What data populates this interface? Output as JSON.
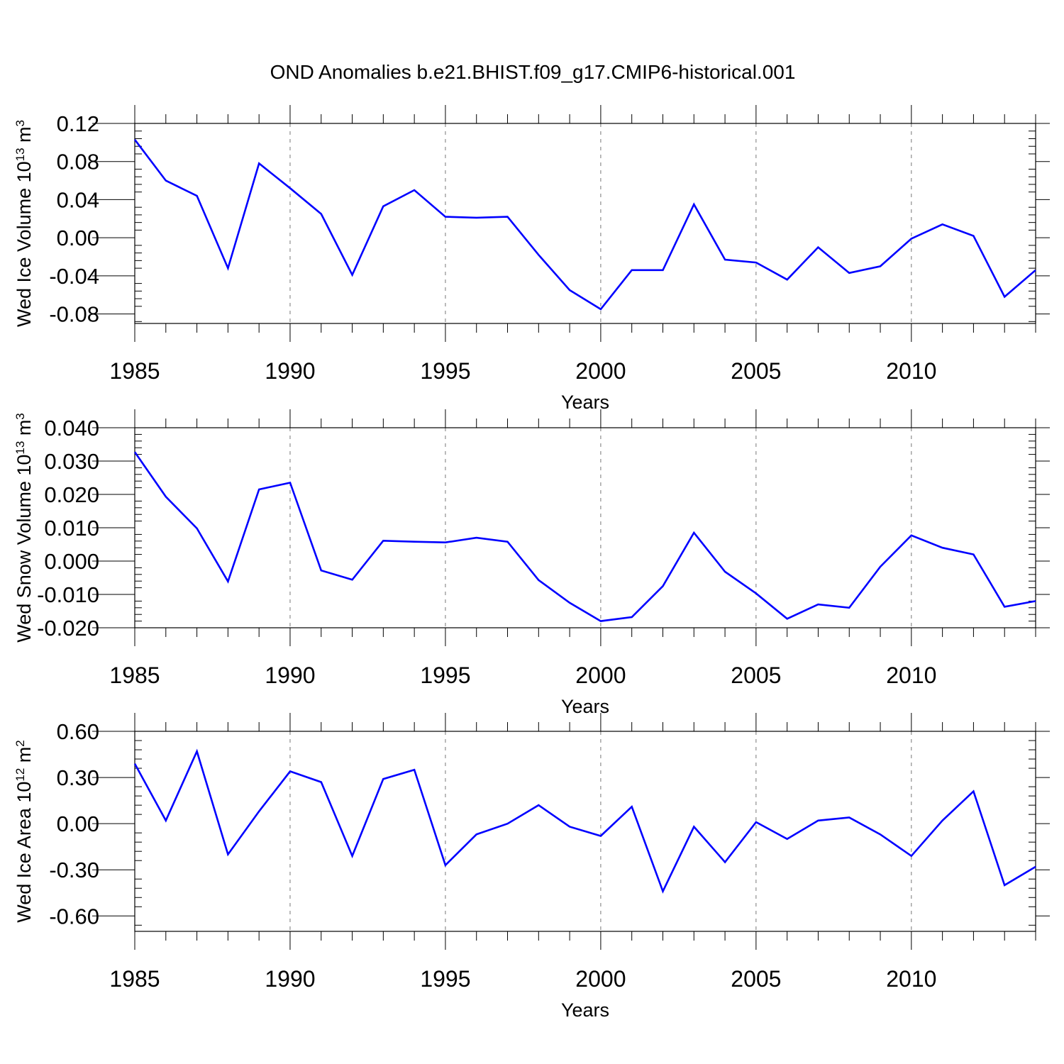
{
  "title": "OND Anomalies b.e21.BHIST.f09_g17.CMIP6-historical.001",
  "colors": {
    "series": "#0000ff",
    "axis": "#000000",
    "grid": "#777777"
  },
  "chart_data": [
    {
      "type": "line",
      "xlabel": "Years",
      "ylabel": {
        "text": "Wed Ice Volume 10",
        "exponent": "13",
        "unit": " m",
        "unit_exponent": "3"
      },
      "xlim": [
        1985,
        2014
      ],
      "ylim": [
        -0.09,
        0.12
      ],
      "yticks": [
        -0.08,
        -0.04,
        0.0,
        0.04,
        0.08,
        0.12
      ],
      "ytick_labels": [
        "-0.08",
        "-0.04",
        "0.00",
        "0.04",
        "0.08",
        "0.12"
      ],
      "xticks": [
        1985,
        1990,
        1995,
        2000,
        2005,
        2010
      ],
      "xtick_labels": [
        "1985",
        "1990",
        "1995",
        "2000",
        "2005",
        "2010"
      ],
      "grid": "vertical dashed at major x ticks",
      "x": [
        1985,
        1986,
        1987,
        1988,
        1989,
        1990,
        1991,
        1992,
        1993,
        1994,
        1995,
        1996,
        1997,
        1998,
        1999,
        2000,
        2001,
        2002,
        2003,
        2004,
        2005,
        2006,
        2007,
        2008,
        2009,
        2010,
        2011,
        2012,
        2013,
        2014
      ],
      "values": [
        0.103,
        0.06,
        0.044,
        -0.032,
        0.078,
        0.052,
        0.025,
        -0.039,
        0.033,
        0.05,
        0.022,
        0.021,
        0.022,
        -0.018,
        -0.055,
        -0.075,
        -0.034,
        -0.034,
        0.035,
        -0.023,
        -0.026,
        -0.044,
        -0.01,
        -0.037,
        -0.03,
        -0.001,
        0.014,
        0.002,
        -0.062,
        -0.034
      ]
    },
    {
      "type": "line",
      "xlabel": "Years",
      "ylabel": {
        "text": "Wed Snow Volume 10",
        "exponent": "13",
        "unit": " m",
        "unit_exponent": "3"
      },
      "xlim": [
        1985,
        2014
      ],
      "ylim": [
        -0.02,
        0.04
      ],
      "yticks": [
        -0.02,
        -0.01,
        0.0,
        0.01,
        0.02,
        0.03,
        0.04
      ],
      "ytick_labels": [
        "-0.020",
        "-0.010",
        "0.000",
        "0.010",
        "0.020",
        "0.030",
        "0.040"
      ],
      "xticks": [
        1985,
        1990,
        1995,
        2000,
        2005,
        2010
      ],
      "xtick_labels": [
        "1985",
        "1990",
        "1995",
        "2000",
        "2005",
        "2010"
      ],
      "grid": "vertical dashed at major x ticks",
      "x": [
        1985,
        1986,
        1987,
        1988,
        1989,
        1990,
        1991,
        1992,
        1993,
        1994,
        1995,
        1996,
        1997,
        1998,
        1999,
        2000,
        2001,
        2002,
        2003,
        2004,
        2005,
        2006,
        2007,
        2008,
        2009,
        2010,
        2011,
        2012,
        2013,
        2014
      ],
      "values": [
        0.0327,
        0.0193,
        0.0098,
        -0.0061,
        0.0215,
        0.0235,
        -0.0028,
        -0.0056,
        0.0061,
        0.0058,
        0.0056,
        0.007,
        0.0058,
        -0.0057,
        -0.0125,
        -0.018,
        -0.0168,
        -0.0075,
        0.0085,
        -0.0032,
        -0.0097,
        -0.0173,
        -0.013,
        -0.014,
        -0.0017,
        0.0077,
        0.004,
        0.002,
        -0.0137,
        -0.012
      ]
    },
    {
      "type": "line",
      "xlabel": "Years",
      "ylabel": {
        "text": "Wed Ice Area 10",
        "exponent": "12",
        "unit": " m",
        "unit_exponent": "2"
      },
      "xlim": [
        1985,
        2014
      ],
      "ylim": [
        -0.7,
        0.6
      ],
      "yticks": [
        -0.6,
        -0.3,
        0.0,
        0.3,
        0.6
      ],
      "ytick_labels": [
        "-0.60",
        "-0.30",
        "0.00",
        "0.30",
        "0.60"
      ],
      "xticks": [
        1985,
        1990,
        1995,
        2000,
        2005,
        2010
      ],
      "xtick_labels": [
        "1985",
        "1990",
        "1995",
        "2000",
        "2005",
        "2010"
      ],
      "grid": "vertical dashed at major x ticks",
      "x": [
        1985,
        1986,
        1987,
        1988,
        1989,
        1990,
        1991,
        1992,
        1993,
        1994,
        1995,
        1996,
        1997,
        1998,
        1999,
        2000,
        2001,
        2002,
        2003,
        2004,
        2005,
        2006,
        2007,
        2008,
        2009,
        2010,
        2011,
        2012,
        2013,
        2014
      ],
      "values": [
        0.39,
        0.02,
        0.47,
        -0.2,
        0.08,
        0.34,
        0.27,
        -0.21,
        0.29,
        0.35,
        -0.27,
        -0.07,
        0.0,
        0.12,
        -0.02,
        -0.08,
        0.11,
        -0.44,
        -0.02,
        -0.25,
        0.01,
        -0.1,
        0.02,
        0.04,
        -0.07,
        -0.21,
        0.02,
        0.21,
        -0.4,
        -0.28
      ]
    }
  ]
}
